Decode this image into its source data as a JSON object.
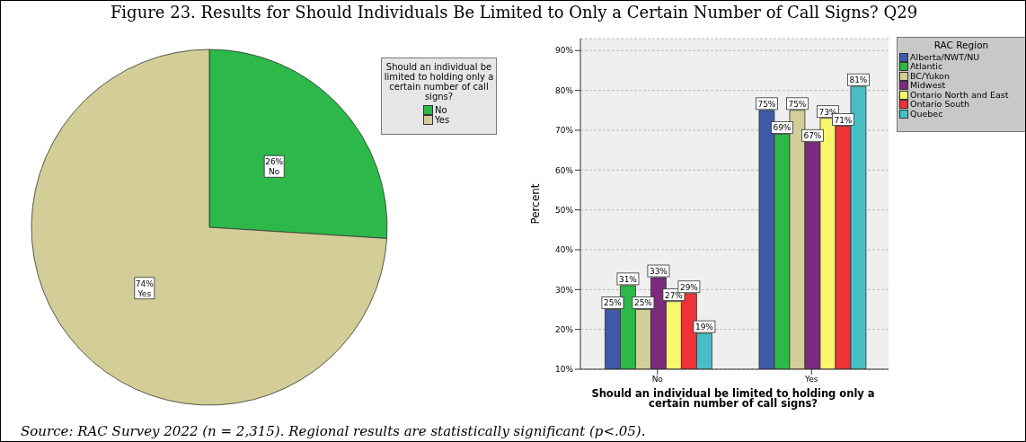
{
  "chart_data": [
    {
      "type": "pie",
      "title": "Figure 23. Results for Should Individuals Be Limited to Only a Certain Number of Call Signs? Q29",
      "legend_title": "Should an individual be limited to holding only a certain number of call signs?",
      "legend": "top right",
      "categories": [
        "No",
        "Yes"
      ],
      "values": [
        26,
        74
      ],
      "colors": [
        "#2db84a",
        "#d3ce97"
      ],
      "value_labels": [
        "26%",
        "74%"
      ],
      "data_labels": true
    },
    {
      "type": "bar",
      "xlabel": "Should an individual be limited to holding only a certain number of call signs?",
      "ylabel": "Percent",
      "legend_title": "RAC Region",
      "legend": "top right",
      "grid": "y",
      "data_labels": true,
      "categories": [
        "No",
        "Yes"
      ],
      "ylim": [
        10,
        93
      ],
      "yticks": [
        {
          "value": 10,
          "label": "10%"
        },
        {
          "value": 20,
          "label": "20%"
        },
        {
          "value": 30,
          "label": "30%"
        },
        {
          "value": 40,
          "label": "40%"
        },
        {
          "value": 50,
          "label": "50%"
        },
        {
          "value": 60,
          "label": "60%"
        },
        {
          "value": 70,
          "label": "70%"
        },
        {
          "value": 80,
          "label": "80%"
        },
        {
          "value": 90,
          "label": "90%"
        }
      ],
      "annotations": [
        "Source: RAC Survey 2022 (n = 2,315). Regional results are statistically significant (p<.05)."
      ],
      "series": [
        {
          "name": "Alberta/NWT/NU",
          "color": "#3f58a8",
          "values": [
            25,
            75
          ],
          "value_labels": [
            "25%",
            "75%"
          ]
        },
        {
          "name": "Atlantic",
          "color": "#2db84a",
          "values": [
            31,
            69
          ],
          "value_labels": [
            "31%",
            "69%"
          ]
        },
        {
          "name": "BC/Yukon",
          "color": "#d3ce97",
          "values": [
            25,
            75
          ],
          "value_labels": [
            "25%",
            "75%"
          ]
        },
        {
          "name": "Midwest",
          "color": "#7b2a7d",
          "values": [
            33,
            67
          ],
          "value_labels": [
            "33%",
            "67%"
          ]
        },
        {
          "name": "Ontario North and East",
          "color": "#f9f56f",
          "values": [
            27,
            73
          ],
          "value_labels": [
            "27%",
            "73%"
          ]
        },
        {
          "name": "Ontario South",
          "color": "#ef3237",
          "values": [
            29,
            71
          ],
          "value_labels": [
            "29%",
            "71%"
          ]
        },
        {
          "name": "Quebec",
          "color": "#47bfc5",
          "values": [
            19,
            81
          ],
          "value_labels": [
            "19%",
            "81%"
          ]
        }
      ]
    }
  ]
}
